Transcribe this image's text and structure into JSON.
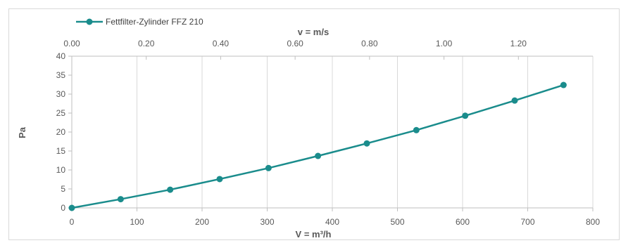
{
  "chart_data": {
    "type": "line",
    "series": [
      {
        "name": "Fettfilter-Zylinder FFZ 210",
        "color": "#1a8c8c",
        "x": [
          0,
          75,
          151,
          227,
          302,
          378,
          453,
          529,
          604,
          680,
          755
        ],
        "y": [
          0,
          2.3,
          4.8,
          7.6,
          10.5,
          13.7,
          17.0,
          20.5,
          24.3,
          28.3,
          32.4
        ]
      }
    ],
    "xlabel": "V = m³/h",
    "x2label": "v = m/s",
    "ylabel": "Pa",
    "xlim": [
      0,
      800
    ],
    "x2lim": [
      0,
      1.4
    ],
    "ylim": [
      0,
      40
    ],
    "xticks": [
      0,
      100,
      200,
      300,
      400,
      500,
      600,
      700,
      800
    ],
    "xtick_labels": [
      "0",
      "100",
      "200",
      "300",
      "400",
      "500",
      "600",
      "700",
      "800"
    ],
    "x2ticks": [
      0,
      0.2,
      0.4,
      0.6,
      0.8,
      1.0,
      1.2
    ],
    "x2tick_labels": [
      "0.00",
      "0.20",
      "0.40",
      "0.60",
      "0.80",
      "1.00",
      "1.20"
    ],
    "yticks": [
      0,
      5,
      10,
      15,
      20,
      25,
      30,
      35,
      40
    ],
    "ytick_labels": [
      "0",
      "5",
      "10",
      "15",
      "20",
      "25",
      "30",
      "35",
      "40"
    ],
    "grid": "vertical",
    "legend": "top-left"
  }
}
